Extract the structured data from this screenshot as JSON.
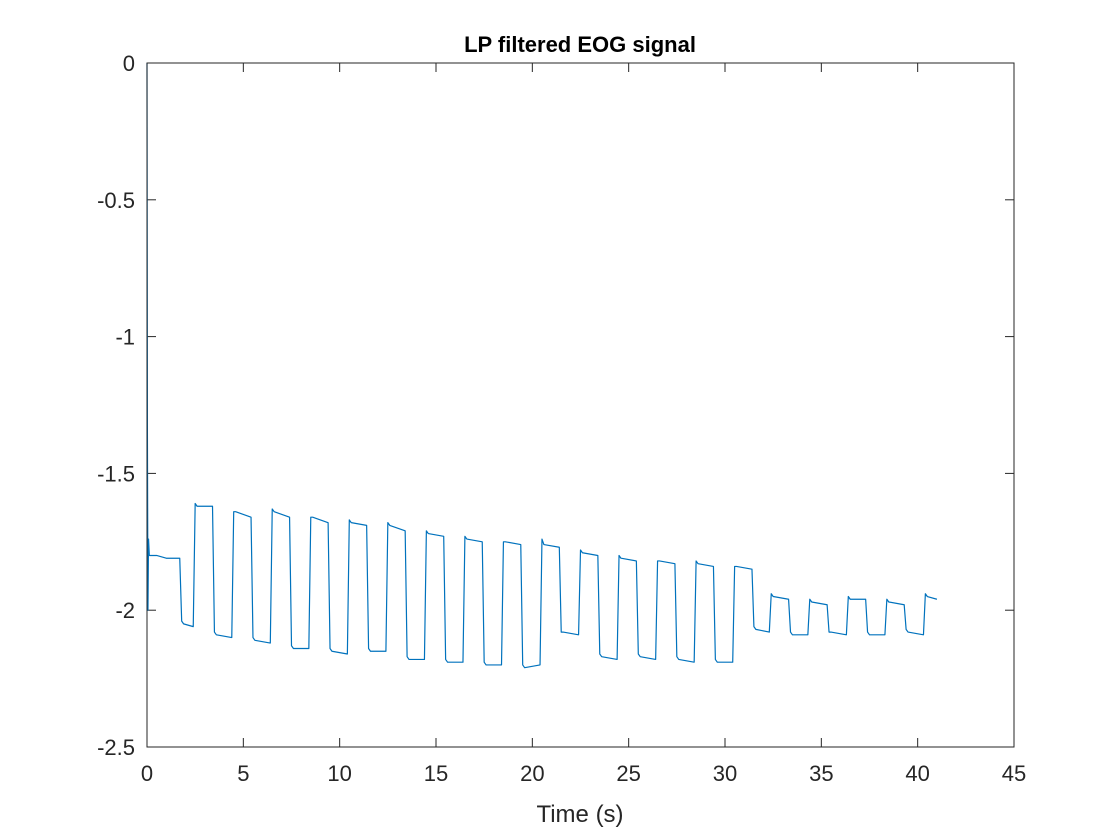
{
  "chart_data": {
    "type": "line",
    "title": "LP filtered EOG signal",
    "xlabel": "Time (s)",
    "ylabel": "",
    "xlim": [
      0,
      45
    ],
    "ylim": [
      -2.5,
      0
    ],
    "xticks": [
      0,
      5,
      10,
      15,
      20,
      25,
      30,
      35,
      40,
      45
    ],
    "yticks": [
      0,
      -0.5,
      -1,
      -1.5,
      -2,
      -2.5
    ],
    "xtick_labels": [
      "0",
      "5",
      "10",
      "15",
      "20",
      "25",
      "30",
      "35",
      "40",
      "45"
    ],
    "ytick_labels": [
      "0",
      "-0.5",
      "-1",
      "-1.5",
      "-2",
      "-2.5"
    ],
    "grid": false,
    "legend": "none",
    "series": [
      {
        "color": "#0072BD",
        "x": [
          0,
          0.02,
          0.05,
          0.08,
          0.12,
          0.2,
          0.5,
          1.0,
          1.7,
          1.8,
          1.9,
          2.4,
          2.5,
          2.6,
          3.4,
          3.5,
          3.6,
          4.4,
          4.5,
          4.6,
          5.4,
          5.5,
          5.6,
          6.4,
          6.5,
          6.6,
          7.4,
          7.5,
          7.6,
          8.4,
          8.5,
          8.6,
          9.4,
          9.5,
          9.6,
          10.4,
          10.5,
          10.6,
          11.4,
          11.5,
          11.6,
          12.4,
          12.5,
          12.6,
          13.4,
          13.5,
          13.6,
          14.4,
          14.5,
          14.6,
          15.4,
          15.5,
          15.6,
          16.4,
          16.5,
          16.6,
          17.4,
          17.5,
          17.6,
          18.4,
          18.5,
          18.6,
          19.4,
          19.5,
          19.6,
          20.4,
          20.5,
          20.6,
          21.4,
          21.5,
          21.6,
          22.4,
          22.5,
          22.6,
          23.4,
          23.5,
          23.6,
          24.4,
          24.5,
          24.6,
          25.4,
          25.5,
          25.6,
          26.4,
          26.5,
          26.6,
          27.4,
          27.5,
          27.6,
          28.4,
          28.5,
          28.6,
          29.4,
          29.5,
          29.6,
          30.4,
          30.5,
          30.6,
          31.4,
          31.5,
          31.6,
          32.3,
          32.4,
          32.5,
          33.3,
          33.4,
          33.5,
          34.3,
          34.4,
          34.5,
          35.3,
          35.4,
          35.5,
          36.3,
          36.4,
          36.5,
          37.3,
          37.4,
          37.5,
          38.3,
          38.4,
          38.5,
          39.3,
          39.4,
          39.5,
          40.3,
          40.4,
          40.5,
          41.0
        ],
        "y": [
          0,
          -1.33,
          -2.0,
          -1.74,
          -1.8,
          -1.8,
          -1.8,
          -1.81,
          -1.81,
          -2.04,
          -2.05,
          -2.06,
          -1.61,
          -1.62,
          -1.62,
          -2.08,
          -2.09,
          -2.1,
          -1.64,
          -1.64,
          -1.66,
          -2.1,
          -2.11,
          -2.12,
          -1.63,
          -1.64,
          -1.66,
          -2.13,
          -2.14,
          -2.14,
          -1.66,
          -1.66,
          -1.68,
          -2.14,
          -2.15,
          -2.16,
          -1.67,
          -1.68,
          -1.69,
          -2.14,
          -2.15,
          -2.15,
          -1.68,
          -1.69,
          -1.71,
          -2.17,
          -2.18,
          -2.18,
          -1.71,
          -1.72,
          -1.73,
          -2.18,
          -2.19,
          -2.19,
          -1.73,
          -1.74,
          -1.75,
          -2.19,
          -2.2,
          -2.2,
          -1.75,
          -1.75,
          -1.76,
          -2.2,
          -2.21,
          -2.2,
          -1.74,
          -1.76,
          -1.77,
          -2.08,
          -2.08,
          -2.09,
          -1.78,
          -1.79,
          -1.8,
          -2.16,
          -2.17,
          -2.18,
          -1.8,
          -1.81,
          -1.82,
          -2.16,
          -2.17,
          -2.18,
          -1.82,
          -1.82,
          -1.83,
          -2.17,
          -2.18,
          -2.19,
          -1.82,
          -1.83,
          -1.84,
          -2.18,
          -2.19,
          -2.19,
          -1.84,
          -1.84,
          -1.85,
          -2.06,
          -2.07,
          -2.08,
          -1.94,
          -1.95,
          -1.96,
          -2.08,
          -2.09,
          -2.09,
          -1.96,
          -1.97,
          -1.98,
          -2.08,
          -2.08,
          -2.09,
          -1.95,
          -1.96,
          -1.96,
          -2.08,
          -2.09,
          -2.09,
          -1.96,
          -1.97,
          -1.98,
          -2.07,
          -2.08,
          -2.09,
          -1.94,
          -1.95,
          -1.96
        ]
      }
    ]
  }
}
